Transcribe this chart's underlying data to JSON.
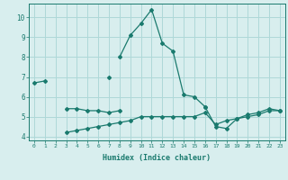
{
  "title": "",
  "xlabel": "Humidex (Indice chaleur)",
  "ylabel": "",
  "background_color": "#d8eeee",
  "grid_color": "#aed8d8",
  "line_color": "#1a7a6e",
  "xlim": [
    -0.5,
    23.5
  ],
  "ylim": [
    3.8,
    10.7
  ],
  "yticks": [
    4,
    5,
    6,
    7,
    8,
    9,
    10
  ],
  "xticks": [
    0,
    1,
    2,
    3,
    4,
    5,
    6,
    7,
    8,
    9,
    10,
    11,
    12,
    13,
    14,
    15,
    16,
    17,
    18,
    19,
    20,
    21,
    22,
    23
  ],
  "series": [
    {
      "x": [
        0,
        1
      ],
      "y": [
        6.7,
        6.8
      ]
    },
    {
      "x": [
        3,
        4,
        5,
        6,
        7,
        8
      ],
      "y": [
        5.4,
        5.4,
        5.3,
        5.3,
        5.2,
        5.3
      ]
    },
    {
      "x": [
        3,
        4,
        5,
        6,
        7,
        8,
        9,
        10,
        11,
        12,
        13,
        14,
        15,
        16,
        17,
        18,
        19,
        20,
        21,
        22,
        23
      ],
      "y": [
        4.2,
        4.3,
        4.4,
        4.5,
        4.6,
        4.7,
        4.8,
        5.0,
        5.0,
        5.0,
        5.0,
        5.0,
        5.0,
        5.2,
        4.6,
        4.8,
        4.9,
        5.0,
        5.1,
        5.3,
        5.3
      ]
    },
    {
      "x": [
        8,
        9,
        10,
        11,
        12,
        13,
        14,
        15,
        16
      ],
      "y": [
        8.0,
        9.1,
        9.7,
        10.4,
        8.7,
        8.3,
        6.1,
        6.0,
        5.5
      ]
    },
    {
      "x": [
        7
      ],
      "y": [
        7.0
      ]
    },
    {
      "x": [
        16,
        17,
        18,
        19,
        20,
        21,
        22,
        23
      ],
      "y": [
        5.5,
        4.5,
        4.4,
        4.9,
        5.1,
        5.2,
        5.4,
        5.3
      ]
    }
  ]
}
